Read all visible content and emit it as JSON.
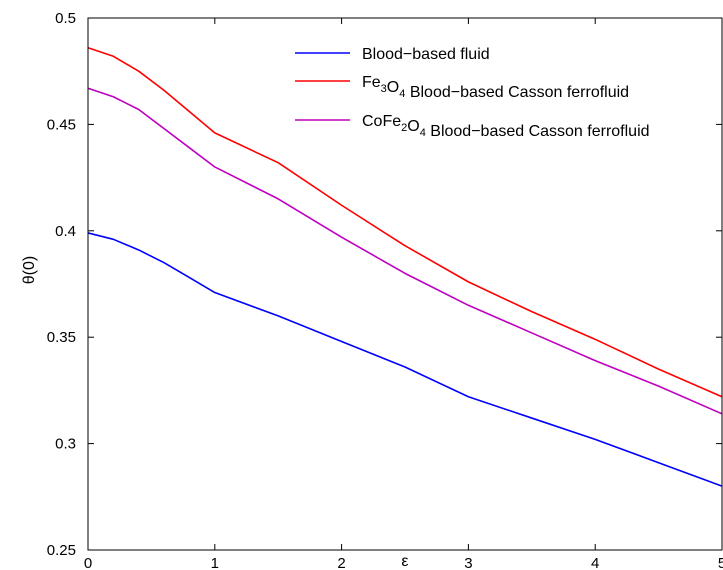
{
  "chart_data": {
    "type": "line",
    "title": "",
    "xlabel": "ε",
    "ylabel": "θ(0)",
    "xlim": [
      0,
      5
    ],
    "ylim": [
      0.25,
      0.5
    ],
    "xticks": [
      0,
      1,
      2,
      3,
      4,
      5
    ],
    "xtick_labels": [
      "0",
      "1",
      "2",
      "3",
      "4",
      "5"
    ],
    "yticks": [
      0.25,
      0.3,
      0.35,
      0.4,
      0.45,
      0.5
    ],
    "ytick_labels": [
      "0.25",
      "0.3",
      "0.35",
      "0.4",
      "0.45",
      "0.5"
    ],
    "grid": false,
    "legend_position": "top-right",
    "x": [
      0,
      0.2,
      0.4,
      0.6,
      0.8,
      1.0,
      1.5,
      2.0,
      2.5,
      3.0,
      3.5,
      4.0,
      4.5,
      5.0
    ],
    "series": [
      {
        "name": "Blood−based fluid",
        "name_parts": [
          {
            "t": "Blood−based fluid"
          }
        ],
        "color": "#0000ff",
        "values": [
          0.399,
          0.396,
          0.391,
          0.385,
          0.378,
          0.371,
          0.36,
          0.348,
          0.336,
          0.322,
          0.312,
          0.302,
          0.291,
          0.28
        ]
      },
      {
        "name": "Fe3O4 Blood−based Casson ferrofluid",
        "name_parts": [
          {
            "t": "Fe"
          },
          {
            "t": "3",
            "sub": true
          },
          {
            "t": "O"
          },
          {
            "t": "4",
            "sub": true
          },
          {
            "t": " Blood−based Casson ferrofluid"
          }
        ],
        "color": "#ff0000",
        "values": [
          0.486,
          0.482,
          0.475,
          0.466,
          0.456,
          0.446,
          0.432,
          0.412,
          0.393,
          0.376,
          0.362,
          0.349,
          0.335,
          0.322
        ]
      },
      {
        "name": "CoFe2O4 Blood−based Casson ferrofluid",
        "name_parts": [
          {
            "t": "CoFe"
          },
          {
            "t": "2",
            "sub": true
          },
          {
            "t": "O"
          },
          {
            "t": "4",
            "sub": true
          },
          {
            "t": " Blood−based Casson ferrofluid"
          }
        ],
        "color": "#bf00bf",
        "values": [
          0.467,
          0.463,
          0.457,
          0.448,
          0.439,
          0.43,
          0.415,
          0.397,
          0.38,
          0.365,
          0.352,
          0.339,
          0.327,
          0.314
        ]
      }
    ]
  }
}
